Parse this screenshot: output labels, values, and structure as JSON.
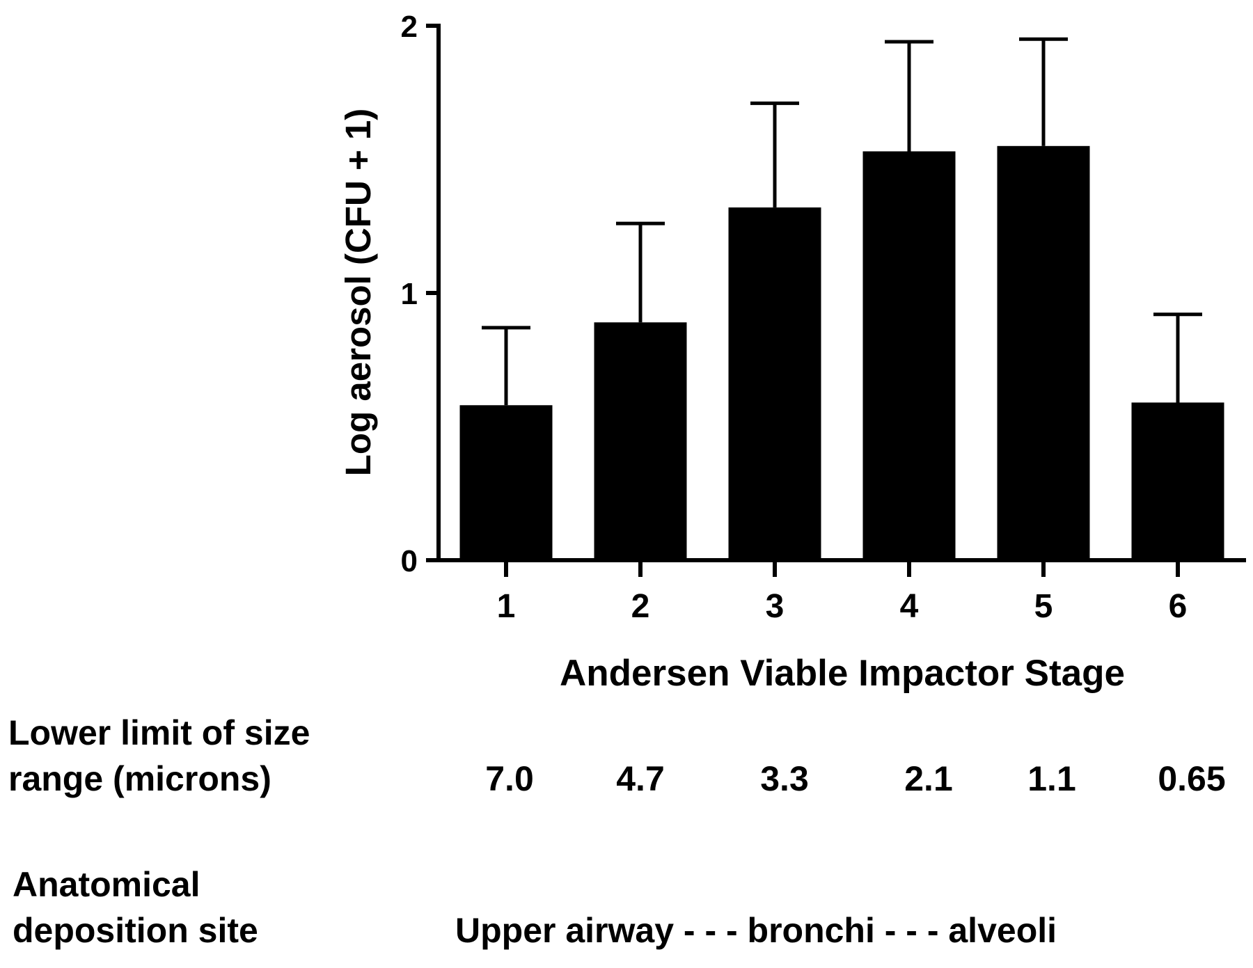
{
  "chart_data": {
    "type": "bar",
    "title": "",
    "xlabel": "Andersen Viable Impactor Stage",
    "ylabel": "Log aerosol (CFU + 1)",
    "categories": [
      "1",
      "2",
      "3",
      "4",
      "5",
      "6"
    ],
    "values": [
      0.58,
      0.89,
      1.32,
      1.53,
      1.55,
      0.59
    ],
    "error_upper": [
      0.87,
      1.26,
      1.71,
      1.94,
      1.95,
      0.92
    ],
    "ylim": [
      0,
      2
    ],
    "yticks": [
      "0",
      "1",
      "2"
    ],
    "bar_color": "#000000",
    "grid": false,
    "legend": "none"
  },
  "annotations": {
    "size_label": [
      "Lower limit of size",
      "range (microns)"
    ],
    "size_values": [
      "7.0",
      "4.7",
      "3.3",
      "2.1",
      "1.1",
      "0.65"
    ],
    "site_label": [
      "Anatomical",
      "deposition site"
    ],
    "site_text": "Upper airway - - - bronchi - - - alveoli"
  }
}
